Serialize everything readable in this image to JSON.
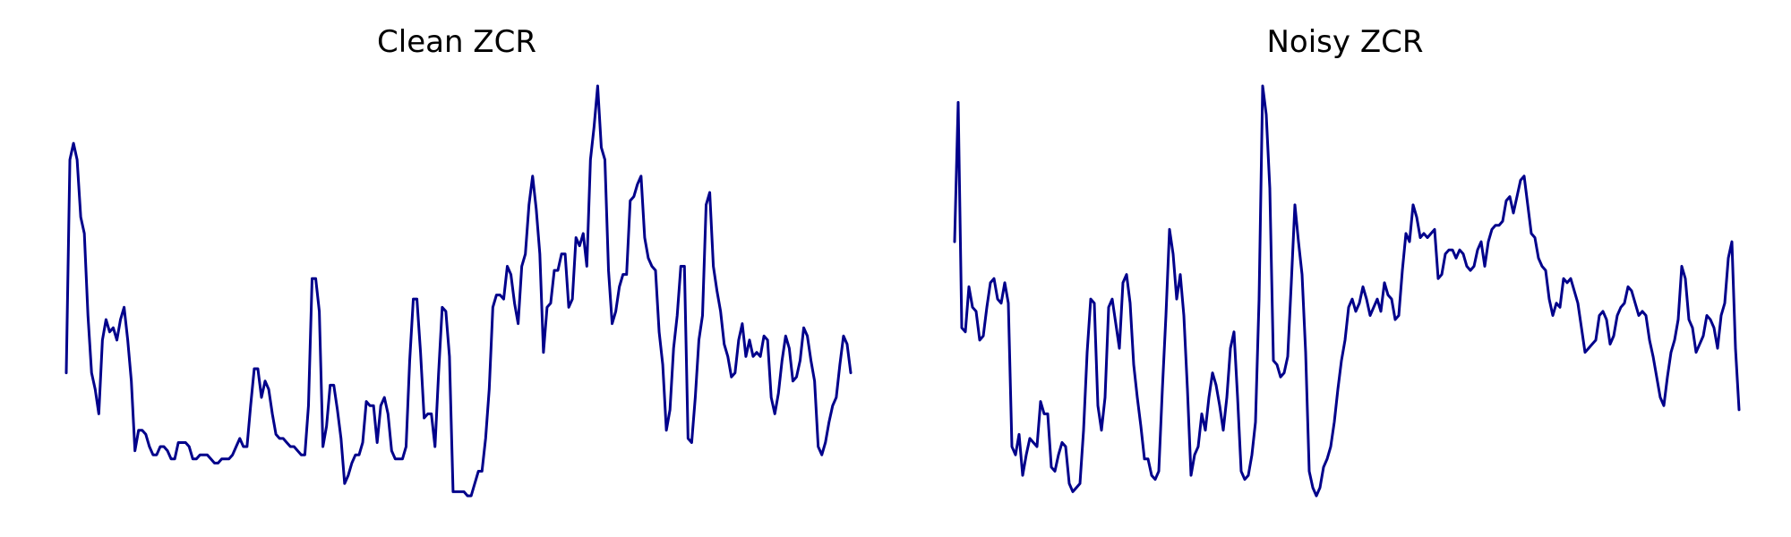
{
  "chart_data": [
    {
      "type": "line",
      "title": "Clean ZCR",
      "xlabel": "",
      "ylabel": "",
      "grid": false,
      "axes_visible": false,
      "color": "#00008B",
      "series": [
        {
          "values": [
            0.3,
            0.82,
            0.86,
            0.82,
            0.68,
            0.64,
            0.44,
            0.3,
            0.26,
            0.2,
            0.38,
            0.43,
            0.4,
            0.41,
            0.38,
            0.43,
            0.46,
            0.38,
            0.28,
            0.11,
            0.16,
            0.16,
            0.15,
            0.12,
            0.1,
            0.1,
            0.12,
            0.12,
            0.11,
            0.09,
            0.09,
            0.13,
            0.13,
            0.13,
            0.12,
            0.09,
            0.09,
            0.1,
            0.1,
            0.1,
            0.09,
            0.08,
            0.08,
            0.09,
            0.09,
            0.09,
            0.1,
            0.12,
            0.14,
            0.12,
            0.12,
            0.22,
            0.31,
            0.31,
            0.24,
            0.28,
            0.26,
            0.2,
            0.15,
            0.14,
            0.14,
            0.13,
            0.12,
            0.12,
            0.11,
            0.1,
            0.1,
            0.22,
            0.53,
            0.53,
            0.45,
            0.12,
            0.17,
            0.27,
            0.27,
            0.21,
            0.14,
            0.03,
            0.05,
            0.08,
            0.1,
            0.1,
            0.13,
            0.23,
            0.22,
            0.22,
            0.13,
            0.22,
            0.24,
            0.2,
            0.11,
            0.09,
            0.09,
            0.09,
            0.12,
            0.33,
            0.48,
            0.48,
            0.35,
            0.19,
            0.2,
            0.2,
            0.12,
            0.3,
            0.46,
            0.45,
            0.34,
            0.01,
            0.01,
            0.01,
            0.01,
            0.0,
            0.0,
            0.03,
            0.06,
            0.06,
            0.14,
            0.26,
            0.46,
            0.49,
            0.49,
            0.48,
            0.56,
            0.54,
            0.47,
            0.42,
            0.56,
            0.59,
            0.71,
            0.78,
            0.7,
            0.59,
            0.35,
            0.46,
            0.47,
            0.55,
            0.55,
            0.59,
            0.59,
            0.46,
            0.48,
            0.63,
            0.61,
            0.64,
            0.56,
            0.82,
            0.9,
            1.0,
            0.85,
            0.82,
            0.55,
            0.42,
            0.45,
            0.51,
            0.54,
            0.54,
            0.72,
            0.73,
            0.76,
            0.78,
            0.63,
            0.58,
            0.56,
            0.55,
            0.4,
            0.32,
            0.16,
            0.21,
            0.36,
            0.44,
            0.56,
            0.56,
            0.14,
            0.13,
            0.24,
            0.38,
            0.44,
            0.71,
            0.74,
            0.56,
            0.5,
            0.45,
            0.37,
            0.34,
            0.29,
            0.3,
            0.38,
            0.42,
            0.34,
            0.38,
            0.34,
            0.35,
            0.34,
            0.39,
            0.38,
            0.24,
            0.2,
            0.25,
            0.33,
            0.39,
            0.36,
            0.28,
            0.29,
            0.33,
            0.41,
            0.39,
            0.33,
            0.28,
            0.12,
            0.1,
            0.13,
            0.18,
            0.22,
            0.24,
            0.32,
            0.39,
            0.37,
            0.3
          ]
        }
      ]
    },
    {
      "type": "line",
      "title": "Noisy ZCR",
      "xlabel": "",
      "ylabel": "",
      "grid": false,
      "axes_visible": false,
      "color": "#00008B",
      "series": [
        {
          "values": [
            0.62,
            0.96,
            0.41,
            0.4,
            0.51,
            0.46,
            0.45,
            0.38,
            0.39,
            0.46,
            0.52,
            0.53,
            0.48,
            0.47,
            0.52,
            0.47,
            0.12,
            0.1,
            0.15,
            0.05,
            0.1,
            0.14,
            0.13,
            0.12,
            0.23,
            0.2,
            0.2,
            0.07,
            0.06,
            0.1,
            0.13,
            0.12,
            0.03,
            0.01,
            0.02,
            0.03,
            0.16,
            0.35,
            0.48,
            0.47,
            0.22,
            0.16,
            0.24,
            0.46,
            0.48,
            0.42,
            0.36,
            0.52,
            0.54,
            0.47,
            0.32,
            0.24,
            0.17,
            0.09,
            0.09,
            0.05,
            0.04,
            0.06,
            0.26,
            0.44,
            0.65,
            0.59,
            0.48,
            0.54,
            0.44,
            0.26,
            0.05,
            0.1,
            0.12,
            0.2,
            0.16,
            0.24,
            0.3,
            0.27,
            0.22,
            0.16,
            0.24,
            0.36,
            0.4,
            0.24,
            0.06,
            0.04,
            0.05,
            0.1,
            0.18,
            0.48,
            1.0,
            0.93,
            0.75,
            0.33,
            0.32,
            0.29,
            0.3,
            0.34,
            0.52,
            0.71,
            0.62,
            0.54,
            0.35,
            0.06,
            0.02,
            0.0,
            0.02,
            0.07,
            0.09,
            0.12,
            0.18,
            0.26,
            0.33,
            0.38,
            0.46,
            0.48,
            0.45,
            0.47,
            0.51,
            0.48,
            0.44,
            0.46,
            0.48,
            0.45,
            0.52,
            0.49,
            0.48,
            0.43,
            0.44,
            0.55,
            0.64,
            0.62,
            0.71,
            0.68,
            0.63,
            0.64,
            0.63,
            0.64,
            0.65,
            0.53,
            0.54,
            0.59,
            0.6,
            0.6,
            0.58,
            0.6,
            0.59,
            0.56,
            0.55,
            0.56,
            0.6,
            0.62,
            0.56,
            0.62,
            0.65,
            0.66,
            0.66,
            0.67,
            0.72,
            0.73,
            0.69,
            0.73,
            0.77,
            0.78,
            0.71,
            0.64,
            0.63,
            0.58,
            0.56,
            0.55,
            0.48,
            0.44,
            0.47,
            0.46,
            0.53,
            0.52,
            0.53,
            0.5,
            0.47,
            0.41,
            0.35,
            0.36,
            0.37,
            0.38,
            0.44,
            0.45,
            0.43,
            0.37,
            0.39,
            0.44,
            0.46,
            0.47,
            0.51,
            0.5,
            0.47,
            0.44,
            0.45,
            0.44,
            0.38,
            0.34,
            0.29,
            0.24,
            0.22,
            0.29,
            0.35,
            0.38,
            0.43,
            0.56,
            0.53,
            0.43,
            0.41,
            0.35,
            0.37,
            0.39,
            0.44,
            0.43,
            0.41,
            0.36,
            0.44,
            0.47,
            0.58,
            0.62,
            0.36,
            0.21
          ]
        }
      ]
    }
  ]
}
